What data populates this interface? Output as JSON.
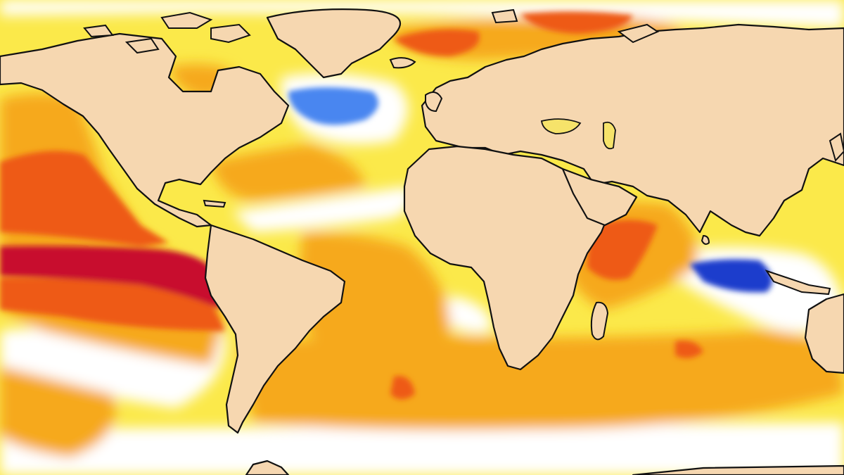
{
  "map": {
    "type": "sea-surface-temperature-anomaly",
    "projection": "equirectangular",
    "extent": {
      "lon": [
        -180,
        180
      ],
      "lat": [
        -72,
        88
      ]
    },
    "colors": {
      "land": "#f6d7b0",
      "coastline": "#111111",
      "neutral": "#ffffff",
      "warm_1": "#fbe94a",
      "warm_2": "#f6a91a",
      "warm_3": "#ee5a13",
      "warm_4": "#c8102e",
      "cool_1": "#a9d2f2",
      "cool_2": "#4a86f0",
      "cool_3": "#1d3ccc"
    },
    "regions": [
      {
        "name": "equatorial-pacific-anomaly",
        "level": "warm_4"
      },
      {
        "name": "north-atlantic-cold-anomaly",
        "level": "cool_2"
      },
      {
        "name": "indian-ocean-cold-anomaly",
        "level": "cool_3"
      },
      {
        "name": "western-indian-ocean-warm-anomaly",
        "level": "warm_3"
      },
      {
        "name": "north-sea-warm-anomaly",
        "level": "warm_3"
      }
    ]
  }
}
